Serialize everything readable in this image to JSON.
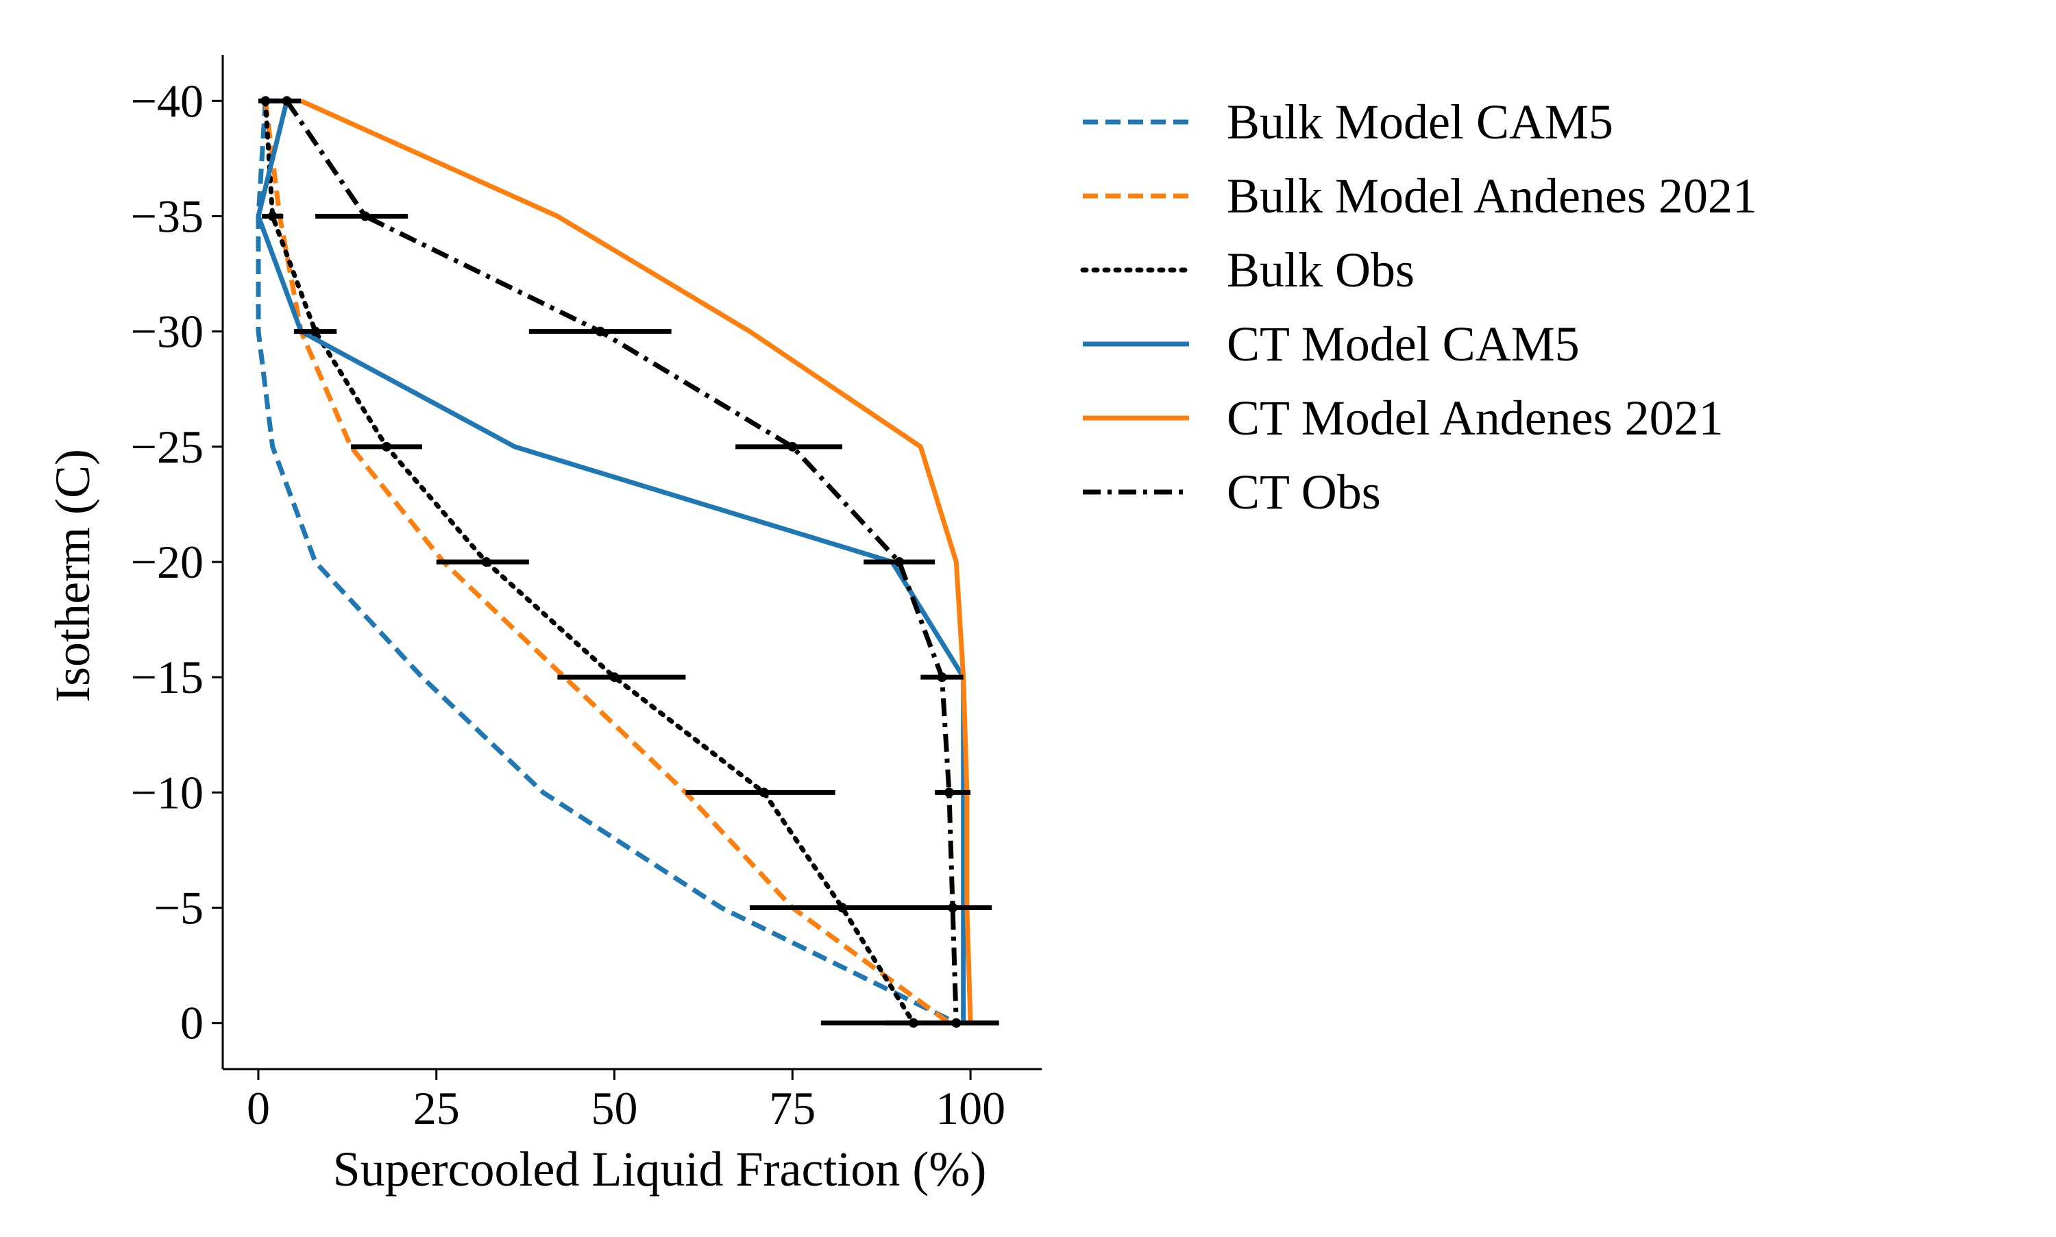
{
  "chart_data": {
    "type": "line",
    "xlabel": "Supercooled Liquid Fraction (%)",
    "ylabel": "Isotherm (C)",
    "xlim": [
      -5,
      110
    ],
    "ylim": [
      2,
      -42
    ],
    "y_inverted": true,
    "grid": false,
    "legend_position": "outside-right",
    "xticks": [
      {
        "value": 0,
        "label": "0"
      },
      {
        "value": 25,
        "label": "25"
      },
      {
        "value": 50,
        "label": "50"
      },
      {
        "value": 75,
        "label": "75"
      },
      {
        "value": 100,
        "label": "100"
      }
    ],
    "yticks": [
      {
        "value": -40,
        "label": "−40"
      },
      {
        "value": -35,
        "label": "−35"
      },
      {
        "value": -30,
        "label": "−30"
      },
      {
        "value": -25,
        "label": "−25"
      },
      {
        "value": -20,
        "label": "−20"
      },
      {
        "value": -15,
        "label": "−15"
      },
      {
        "value": -10,
        "label": "−10"
      },
      {
        "value": -5,
        "label": "−5"
      },
      {
        "value": 0,
        "label": "0"
      }
    ],
    "series": [
      {
        "name": "Bulk Model CAM5",
        "color": "#1f77b4",
        "style": "dashed",
        "points": [
          [
            1,
            -40
          ],
          [
            0,
            -35
          ],
          [
            0,
            -30
          ],
          [
            2,
            -25
          ],
          [
            8,
            -20
          ],
          [
            23,
            -15
          ],
          [
            40,
            -10
          ],
          [
            65,
            -5
          ],
          [
            98,
            0
          ]
        ]
      },
      {
        "name": "Bulk Model Andenes 2021",
        "color": "#ff7f0e",
        "style": "dashed",
        "points": [
          [
            1,
            -40
          ],
          [
            3,
            -35
          ],
          [
            6,
            -30
          ],
          [
            13,
            -25
          ],
          [
            26,
            -20
          ],
          [
            43,
            -15
          ],
          [
            60,
            -10
          ],
          [
            75,
            -5
          ],
          [
            97,
            0
          ]
        ]
      },
      {
        "name": "Bulk Obs",
        "color": "#000000",
        "style": "dotted",
        "points": [
          [
            1,
            -40
          ],
          [
            2,
            -35
          ],
          [
            8,
            -30
          ],
          [
            18,
            -25
          ],
          [
            32,
            -20
          ],
          [
            50,
            -15
          ],
          [
            71,
            -10
          ],
          [
            82,
            -5
          ],
          [
            92,
            0
          ]
        ]
      },
      {
        "name": "CT Model CAM5",
        "color": "#1f77b4",
        "style": "solid",
        "points": [
          [
            4,
            -40
          ],
          [
            0,
            -35
          ],
          [
            6,
            -30
          ],
          [
            36,
            -25
          ],
          [
            89,
            -20
          ],
          [
            99,
            -15
          ],
          [
            99,
            -10
          ],
          [
            99,
            -5
          ],
          [
            99,
            0
          ]
        ]
      },
      {
        "name": "CT Model Andenes 2021",
        "color": "#ff7f0e",
        "style": "solid",
        "points": [
          [
            6,
            -40
          ],
          [
            42,
            -35
          ],
          [
            69,
            -30
          ],
          [
            93,
            -25
          ],
          [
            98,
            -20
          ],
          [
            99,
            -15
          ],
          [
            99.5,
            -10
          ],
          [
            99.5,
            -5
          ],
          [
            100,
            0
          ]
        ]
      },
      {
        "name": "CT Obs",
        "color": "#000000",
        "style": "dashdot",
        "points": [
          [
            4,
            -40
          ],
          [
            15,
            -35
          ],
          [
            48,
            -30
          ],
          [
            75,
            -25
          ],
          [
            90,
            -20
          ],
          [
            96,
            -15
          ],
          [
            97,
            -10
          ],
          [
            97.5,
            -5
          ],
          [
            98,
            0
          ]
        ]
      }
    ],
    "error_bars": [
      {
        "series": "Bulk Obs",
        "y": -40,
        "x": 1,
        "xmin": 0,
        "xmax": 3
      },
      {
        "series": "Bulk Obs",
        "y": -35,
        "x": 2,
        "xmin": 0.5,
        "xmax": 3.5
      },
      {
        "series": "Bulk Obs",
        "y": -30,
        "x": 8,
        "xmin": 5,
        "xmax": 11
      },
      {
        "series": "Bulk Obs",
        "y": -25,
        "x": 18,
        "xmin": 13,
        "xmax": 23
      },
      {
        "series": "Bulk Obs",
        "y": -20,
        "x": 32,
        "xmin": 25,
        "xmax": 38
      },
      {
        "series": "Bulk Obs",
        "y": -15,
        "x": 50,
        "xmin": 42,
        "xmax": 60
      },
      {
        "series": "Bulk Obs",
        "y": -10,
        "x": 71,
        "xmin": 60,
        "xmax": 81
      },
      {
        "series": "Bulk Obs",
        "y": -5,
        "x": 82,
        "xmin": 69,
        "xmax": 97
      },
      {
        "series": "Bulk Obs",
        "y": 0,
        "x": 92,
        "xmin": 79,
        "xmax": 104
      },
      {
        "series": "CT Obs",
        "y": -40,
        "x": 4,
        "xmin": 1,
        "xmax": 6
      },
      {
        "series": "CT Obs",
        "y": -35,
        "x": 15,
        "xmin": 8,
        "xmax": 21
      },
      {
        "series": "CT Obs",
        "y": -30,
        "x": 48,
        "xmin": 38,
        "xmax": 58
      },
      {
        "series": "CT Obs",
        "y": -25,
        "x": 75,
        "xmin": 67,
        "xmax": 82
      },
      {
        "series": "CT Obs",
        "y": -20,
        "x": 90,
        "xmin": 85,
        "xmax": 95
      },
      {
        "series": "CT Obs",
        "y": -15,
        "x": 96,
        "xmin": 93,
        "xmax": 99
      },
      {
        "series": "CT Obs",
        "y": -10,
        "x": 97,
        "xmin": 95,
        "xmax": 100
      },
      {
        "series": "CT Obs",
        "y": -5,
        "x": 97.5,
        "xmin": 87,
        "xmax": 103
      },
      {
        "series": "CT Obs",
        "y": 0,
        "x": 98,
        "xmin": 88,
        "xmax": 104
      }
    ]
  }
}
